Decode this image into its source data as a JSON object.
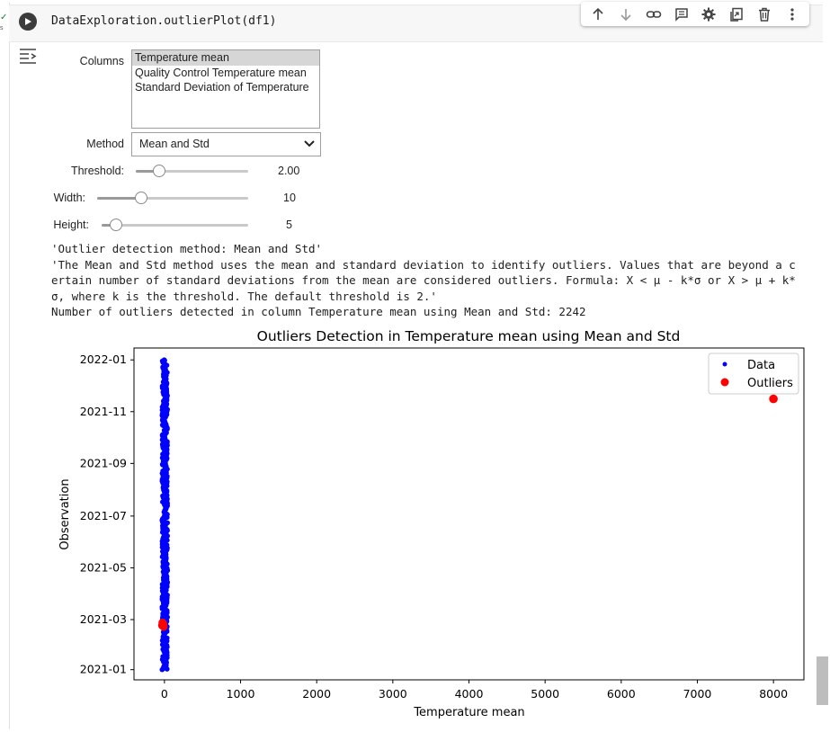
{
  "cell": {
    "code": "DataExploration.outlierPlot(df1)",
    "status_check": "✓",
    "exec_time": "s"
  },
  "toolbar": {
    "icons": [
      "arrow-up-icon",
      "arrow-down-icon",
      "link-icon",
      "comment-icon",
      "gear-icon",
      "mirror-cell-icon",
      "trash-icon",
      "more-vert-icon"
    ]
  },
  "widgets": {
    "columns_label": "Columns",
    "columns_options": [
      "Temperature mean",
      "Quality Control Temperature mean",
      "Standard Deviation of Temperature"
    ],
    "columns_selected": "Temperature mean",
    "method_label": "Method",
    "method_value": "Mean and Std",
    "threshold_label": "Threshold:",
    "threshold_value": "2.00",
    "width_label": "Width:",
    "width_value": "10",
    "height_label": "Height:",
    "height_value": "5"
  },
  "output": {
    "line1": "'Outlier detection method: Mean and Std'",
    "line2": "'The Mean and Std method uses the mean and standard deviation to identify outliers. Values that are beyond a c",
    "line3": "ertain number of standard deviations from the mean are considered outliers. Formula: X < μ - k*σ or X > μ + k*",
    "line4": "σ, where k is the threshold. The default threshold is 2.'",
    "line5": "Number of outliers detected in column Temperature mean using Mean and Std: 2242"
  },
  "chart_data": {
    "type": "scatter",
    "title": "Outliers Detection in Temperature mean using Mean and Std",
    "xlabel": "Temperature mean",
    "ylabel": "Observation",
    "xlim": [
      -400,
      8400
    ],
    "x_ticks": [
      "0",
      "1000",
      "2000",
      "3000",
      "4000",
      "5000",
      "6000",
      "7000",
      "8000"
    ],
    "x_tick_values": [
      0,
      1000,
      2000,
      3000,
      4000,
      5000,
      6000,
      7000,
      8000
    ],
    "y_ticks": [
      "2021-01",
      "2021-03",
      "2021-05",
      "2021-07",
      "2021-09",
      "2021-11",
      "2022-01"
    ],
    "ylim": [
      "2020-12-20",
      "2022-01-15"
    ],
    "legend_position": "top-right",
    "legend": [
      "Data",
      "Outliers"
    ],
    "colors": {
      "data": "#0000ff",
      "outliers": "#ff0000"
    },
    "series": [
      {
        "name": "Data",
        "x_range": [
          -30,
          40
        ],
        "y_range": [
          "2021-01-01",
          "2022-01-01"
        ],
        "color": "#0000ff"
      },
      {
        "name": "Outliers",
        "points": [
          {
            "x": 8000,
            "y": "2021-11-16"
          },
          {
            "x": -20,
            "y": "2021-02-23"
          }
        ],
        "color": "#ff0000"
      }
    ]
  }
}
